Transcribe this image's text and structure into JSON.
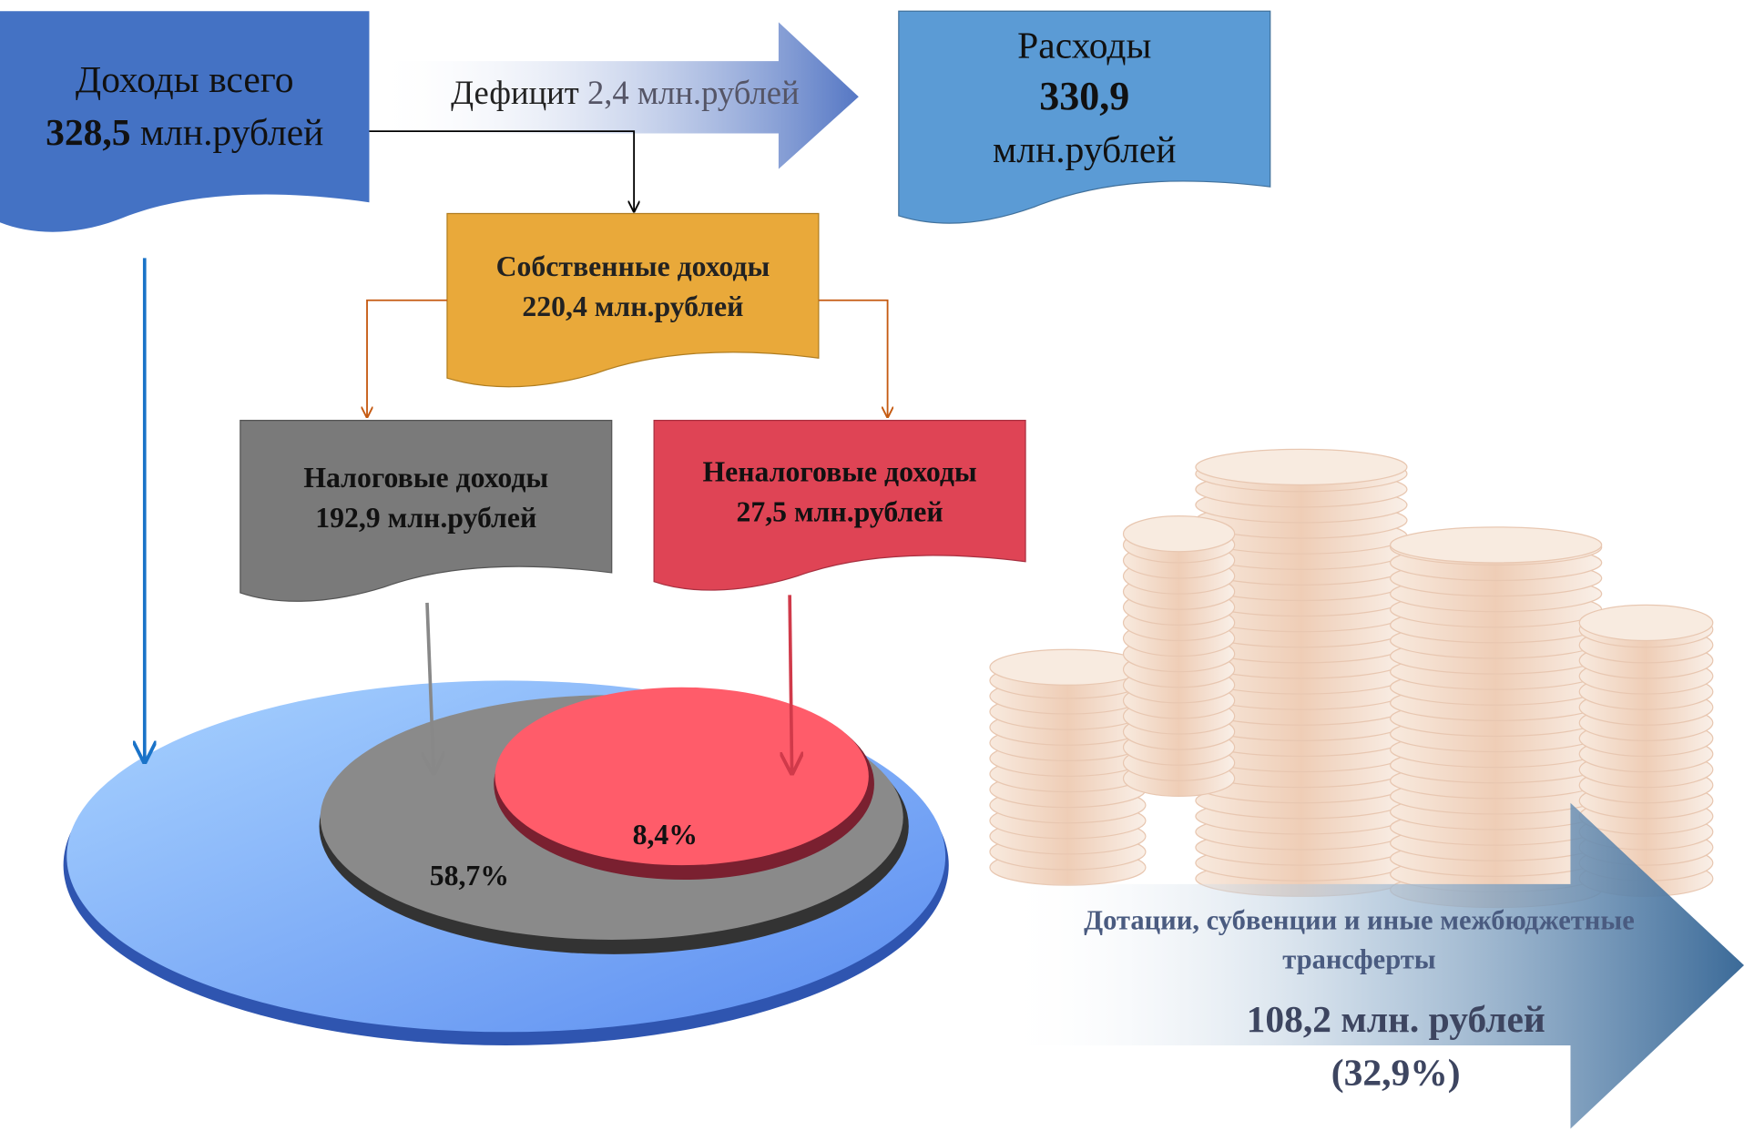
{
  "income_total": {
    "label": "Доходы всего",
    "amount": "328,5",
    "unit": "млн.рублей"
  },
  "deficit": {
    "label": "Дефицит",
    "amount": "2,4 млн.рублей"
  },
  "expenses": {
    "label": "Расходы",
    "amount": "330,9",
    "unit": "млн.рублей"
  },
  "own_income": {
    "label": "Собственные доходы",
    "amount": "220,4 млн.рублей"
  },
  "tax_income": {
    "label": "Налоговые доходы",
    "amount": "192,9 млн.рублей",
    "share": "58,7%"
  },
  "non_tax_income": {
    "label": "Неналоговые доходы",
    "amount": "27,5 млн.рублей",
    "share": "8,4%"
  },
  "transfers": {
    "label_lines": [
      "Дотации, субвенции и иные межбюджетные",
      "трансферты"
    ],
    "amount": "108,2 млн. рублей",
    "share": "(32,9%)"
  }
}
